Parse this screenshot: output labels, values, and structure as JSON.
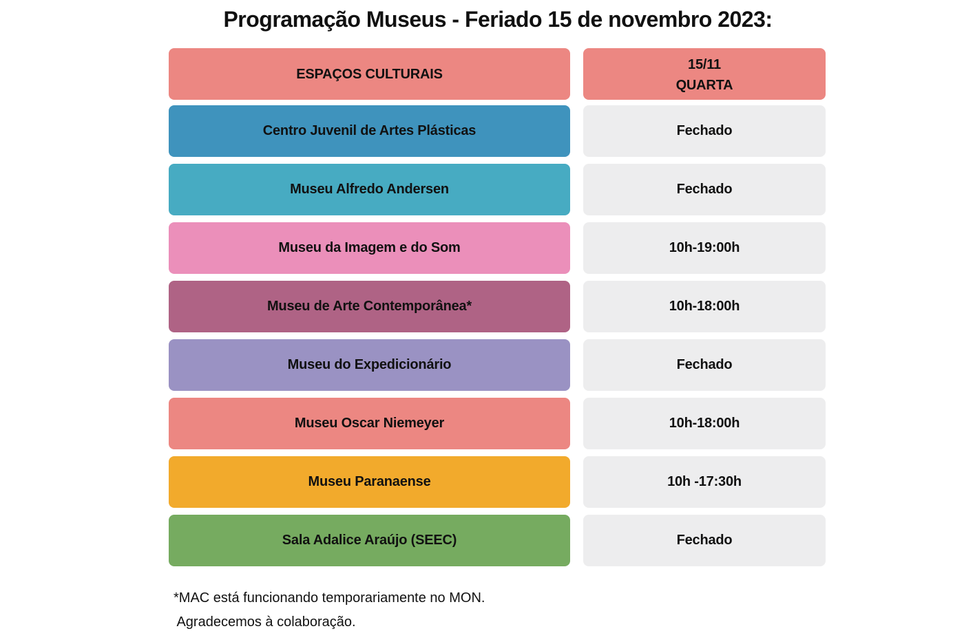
{
  "title": "Programação Museus - Feriado 15 de novembro 2023:",
  "header": {
    "left_label": "ESPAÇOS CULTURAIS",
    "date": "15/11",
    "weekday": "QUARTA",
    "color": "#ec8782"
  },
  "rows": [
    {
      "name": "Centro Juvenil de Artes Plásticas",
      "hours": "Fechado",
      "color": "#3f93bd"
    },
    {
      "name": "Museu Alfredo Andersen",
      "hours": "Fechado",
      "color": "#47abc2"
    },
    {
      "name": "Museu da Imagem e do Som",
      "hours": "10h-19:00h",
      "color": "#eb8fba"
    },
    {
      "name": "Museu de Arte Contemporânea*",
      "hours": "10h-18:00h",
      "color": "#af6385"
    },
    {
      "name": "Museu do Expedicionário",
      "hours": "Fechado",
      "color": "#9a92c3"
    },
    {
      "name": "Museu Oscar Niemeyer",
      "hours": "10h-18:00h",
      "color": "#ec8782"
    },
    {
      "name": "Museu Paranaense",
      "hours": "10h -17:30h",
      "color": "#f2aa2c"
    },
    {
      "name": "Sala Adalice Araújo (SEEC)",
      "hours": "Fechado",
      "color": "#76ab60"
    }
  ],
  "hours_cell_color": "#ededee",
  "footnotes": [
    "*MAC está funcionando temporariamente no MON.",
    " Agradecemos à colaboração."
  ]
}
